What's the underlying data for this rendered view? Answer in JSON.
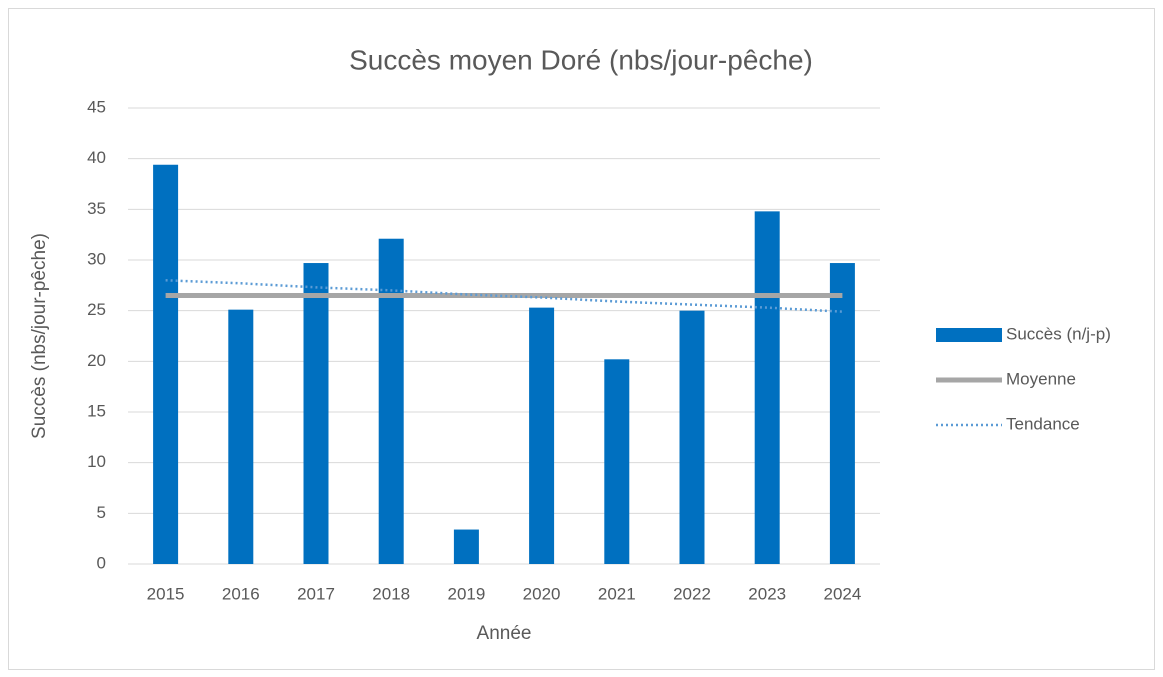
{
  "chart_data": {
    "type": "bar",
    "title": "Succès moyen Doré (nbs/jour-pêche)",
    "x_label": "Année",
    "y_label": "Succès (nbs/jour-pêche)",
    "categories": [
      "2015",
      "2016",
      "2017",
      "2018",
      "2019",
      "2020",
      "2021",
      "2022",
      "2023",
      "2024"
    ],
    "series": [
      {
        "name": "Succès (n/j-p)",
        "type": "bar",
        "color": "#0070c0",
        "values": [
          39.4,
          25.1,
          29.7,
          32.1,
          3.4,
          25.3,
          20.2,
          25.0,
          34.8,
          29.7
        ]
      },
      {
        "name": "Moyenne",
        "type": "line",
        "style": "solid",
        "color": "#a6a6a6",
        "values": [
          26.5,
          26.5,
          26.5,
          26.5,
          26.5,
          26.5,
          26.5,
          26.5,
          26.5,
          26.5
        ]
      },
      {
        "name": "Tendance",
        "type": "line",
        "style": "dotted",
        "color": "#5b9bd5",
        "values": [
          28.0,
          27.7,
          27.3,
          27.0,
          26.6,
          26.3,
          25.9,
          25.6,
          25.3,
          24.9
        ]
      }
    ],
    "ylim": [
      0,
      45
    ],
    "yticks": [
      0,
      5,
      10,
      15,
      20,
      25,
      30,
      35,
      40,
      45
    ],
    "grid": true,
    "legend": "right"
  }
}
